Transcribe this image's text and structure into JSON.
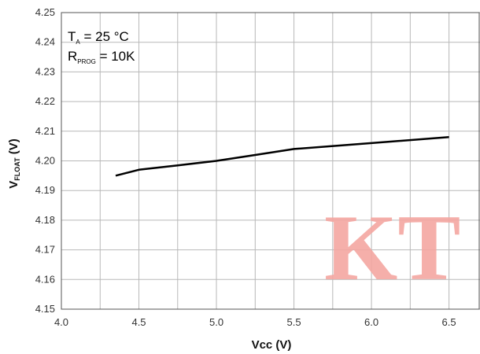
{
  "chart_data": {
    "type": "line",
    "title": "",
    "xlabel": {
      "main": "Vcc (V)"
    },
    "ylabel": {
      "main": "V",
      "sub": "FLOAT",
      "suffix": " (V)"
    },
    "xlim": [
      4.0,
      6.7
    ],
    "ylim": [
      4.15,
      4.25
    ],
    "xticks": [
      "4.0",
      "4.5",
      "5.0",
      "5.5",
      "6.0",
      "6.5"
    ],
    "yticks": [
      "4.15",
      "4.16",
      "4.17",
      "4.18",
      "4.19",
      "4.20",
      "4.21",
      "4.22",
      "4.23",
      "4.24",
      "4.25"
    ],
    "grid": true,
    "series": [
      {
        "x": [
          4.35,
          4.5,
          4.75,
          5.0,
          5.25,
          5.5,
          6.0,
          6.5
        ],
        "y": [
          4.195,
          4.197,
          4.1985,
          4.2,
          4.202,
          4.204,
          4.206,
          4.208
        ],
        "color": "#000000"
      }
    ],
    "annotations": [
      {
        "main": "T",
        "sub": "A",
        "rest": " = 25 °C"
      },
      {
        "main": "R",
        "sub": "PROG",
        "rest": " = 10K"
      }
    ]
  },
  "watermark": {
    "text": "KT"
  }
}
